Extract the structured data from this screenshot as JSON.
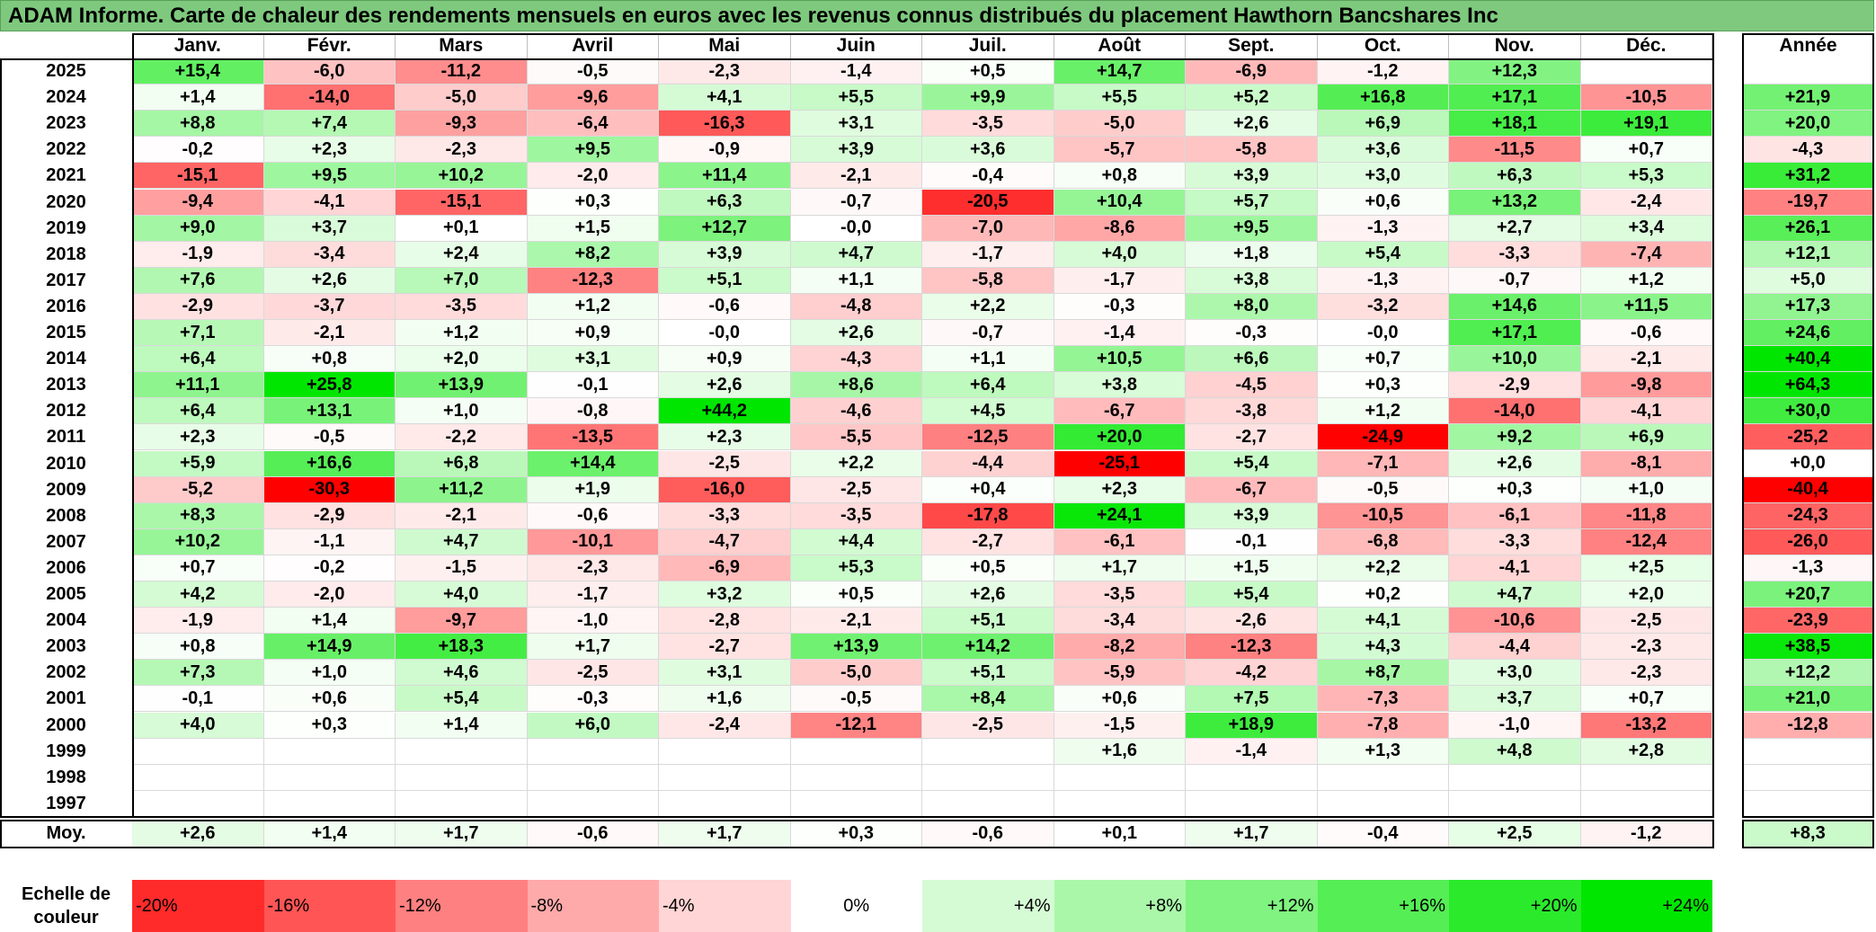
{
  "title": "ADAM Informe. Carte de chaleur des rendements mensuels en euros avec les revenus connus distribués du placement Hawthorn Bancshares Inc",
  "chart_data": {
    "type": "heatmap",
    "title": "ADAM Informe. Carte de chaleur des rendements mensuels en euros avec les revenus connus distribués du placement Hawthorn Bancshares Inc",
    "columns": [
      "Janv.",
      "Févr.",
      "Mars",
      "Avril",
      "Mai",
      "Juin",
      "Juil.",
      "Août",
      "Sept.",
      "Oct.",
      "Nov.",
      "Déc."
    ],
    "year_column_label": "Année",
    "average_label": "Moy.",
    "rows": [
      {
        "year": "2025",
        "values": [
          "+15,4",
          "-6,0",
          "-11,2",
          "-0,5",
          "-2,3",
          "-1,4",
          "+0,5",
          "+14,7",
          "-6,9",
          "-1,2",
          "+12,3",
          ""
        ],
        "annual": ""
      },
      {
        "year": "2024",
        "values": [
          "+1,4",
          "-14,0",
          "-5,0",
          "-9,6",
          "+4,1",
          "+5,5",
          "+9,9",
          "+5,5",
          "+5,2",
          "+16,8",
          "+17,1",
          "-10,5"
        ],
        "annual": "+21,9"
      },
      {
        "year": "2023",
        "values": [
          "+8,8",
          "+7,4",
          "-9,3",
          "-6,4",
          "-16,3",
          "+3,1",
          "-3,5",
          "-5,0",
          "+2,6",
          "+6,9",
          "+18,1",
          "+19,1"
        ],
        "annual": "+20,0"
      },
      {
        "year": "2022",
        "values": [
          "-0,2",
          "+2,3",
          "-2,3",
          "+9,5",
          "-0,9",
          "+3,9",
          "+3,6",
          "-5,7",
          "-5,8",
          "+3,6",
          "-11,5",
          "+0,7"
        ],
        "annual": "-4,3"
      },
      {
        "year": "2021",
        "values": [
          "-15,1",
          "+9,5",
          "+10,2",
          "-2,0",
          "+11,4",
          "-2,1",
          "-0,4",
          "+0,8",
          "+3,9",
          "+3,0",
          "+6,3",
          "+5,3"
        ],
        "annual": "+31,2"
      },
      {
        "year": "2020",
        "values": [
          "-9,4",
          "-4,1",
          "-15,1",
          "+0,3",
          "+6,3",
          "-0,7",
          "-20,5",
          "+10,4",
          "+5,7",
          "+0,6",
          "+13,2",
          "-2,4"
        ],
        "annual": "-19,7"
      },
      {
        "year": "2019",
        "values": [
          "+9,0",
          "+3,7",
          "+0,1",
          "+1,5",
          "+12,7",
          "-0,0",
          "-7,0",
          "-8,6",
          "+9,5",
          "-1,3",
          "+2,7",
          "+3,4"
        ],
        "annual": "+26,1"
      },
      {
        "year": "2018",
        "values": [
          "-1,9",
          "-3,4",
          "+2,4",
          "+8,2",
          "+3,9",
          "+4,7",
          "-1,7",
          "+4,0",
          "+1,8",
          "+5,4",
          "-3,3",
          "-7,4"
        ],
        "annual": "+12,1"
      },
      {
        "year": "2017",
        "values": [
          "+7,6",
          "+2,6",
          "+7,0",
          "-12,3",
          "+5,1",
          "+1,1",
          "-5,8",
          "-1,7",
          "+3,8",
          "-1,3",
          "-0,7",
          "+1,2"
        ],
        "annual": "+5,0"
      },
      {
        "year": "2016",
        "values": [
          "-2,9",
          "-3,7",
          "-3,5",
          "+1,2",
          "-0,6",
          "-4,8",
          "+2,2",
          "-0,3",
          "+8,0",
          "-3,2",
          "+14,6",
          "+11,5"
        ],
        "annual": "+17,3"
      },
      {
        "year": "2015",
        "values": [
          "+7,1",
          "-2,1",
          "+1,2",
          "+0,9",
          "-0,0",
          "+2,6",
          "-0,7",
          "-1,4",
          "-0,3",
          "-0,0",
          "+17,1",
          "-0,6"
        ],
        "annual": "+24,6"
      },
      {
        "year": "2014",
        "values": [
          "+6,4",
          "+0,8",
          "+2,0",
          "+3,1",
          "+0,9",
          "-4,3",
          "+1,1",
          "+10,5",
          "+6,6",
          "+0,7",
          "+10,0",
          "-2,1"
        ],
        "annual": "+40,4"
      },
      {
        "year": "2013",
        "values": [
          "+11,1",
          "+25,8",
          "+13,9",
          "-0,1",
          "+2,6",
          "+8,6",
          "+6,4",
          "+3,8",
          "-4,5",
          "+0,3",
          "-2,9",
          "-9,8"
        ],
        "annual": "+64,3"
      },
      {
        "year": "2012",
        "values": [
          "+6,4",
          "+13,1",
          "+1,0",
          "-0,8",
          "+44,2",
          "-4,6",
          "+4,5",
          "-6,7",
          "-3,8",
          "+1,2",
          "-14,0",
          "-4,1"
        ],
        "annual": "+30,0"
      },
      {
        "year": "2011",
        "values": [
          "+2,3",
          "-0,5",
          "-2,2",
          "-13,5",
          "+2,3",
          "-5,5",
          "-12,5",
          "+20,0",
          "-2,7",
          "-24,9",
          "+9,2",
          "+6,9"
        ],
        "annual": "-25,2"
      },
      {
        "year": "2010",
        "values": [
          "+5,9",
          "+16,6",
          "+6,8",
          "+14,4",
          "-2,5",
          "+2,2",
          "-4,4",
          "-25,1",
          "+5,4",
          "-7,1",
          "+2,6",
          "-8,1"
        ],
        "annual": "+0,0"
      },
      {
        "year": "2009",
        "values": [
          "-5,2",
          "-30,3",
          "+11,2",
          "+1,9",
          "-16,0",
          "-2,5",
          "+0,4",
          "+2,3",
          "-6,7",
          "-0,5",
          "+0,3",
          "+1,0"
        ],
        "annual": "-40,4"
      },
      {
        "year": "2008",
        "values": [
          "+8,3",
          "-2,9",
          "-2,1",
          "-0,6",
          "-3,3",
          "-3,5",
          "-17,8",
          "+24,1",
          "+3,9",
          "-10,5",
          "-6,1",
          "-11,8"
        ],
        "annual": "-24,3"
      },
      {
        "year": "2007",
        "values": [
          "+10,2",
          "-1,1",
          "+4,7",
          "-10,1",
          "-4,7",
          "+4,4",
          "-2,7",
          "-6,1",
          "-0,1",
          "-6,8",
          "-3,3",
          "-12,4"
        ],
        "annual": "-26,0"
      },
      {
        "year": "2006",
        "values": [
          "+0,7",
          "-0,2",
          "-1,5",
          "-2,3",
          "-6,9",
          "+5,3",
          "+0,5",
          "+1,7",
          "+1,5",
          "+2,2",
          "-4,1",
          "+2,5"
        ],
        "annual": "-1,3"
      },
      {
        "year": "2005",
        "values": [
          "+4,2",
          "-2,0",
          "+4,0",
          "-1,7",
          "+3,2",
          "+0,5",
          "+2,6",
          "-3,5",
          "+5,4",
          "+0,2",
          "+4,7",
          "+2,0"
        ],
        "annual": "+20,7"
      },
      {
        "year": "2004",
        "values": [
          "-1,9",
          "+1,4",
          "-9,7",
          "-1,0",
          "-2,8",
          "-2,1",
          "+5,1",
          "-3,4",
          "-2,6",
          "+4,1",
          "-10,6",
          "-2,5"
        ],
        "annual": "-23,9"
      },
      {
        "year": "2003",
        "values": [
          "+0,8",
          "+14,9",
          "+18,3",
          "+1,7",
          "-2,7",
          "+13,9",
          "+14,2",
          "-8,2",
          "-12,3",
          "+4,3",
          "-4,4",
          "-2,3"
        ],
        "annual": "+38,5"
      },
      {
        "year": "2002",
        "values": [
          "+7,3",
          "+1,0",
          "+4,6",
          "-2,5",
          "+3,1",
          "-5,0",
          "+5,1",
          "-5,9",
          "-4,2",
          "+8,7",
          "+3,0",
          "-2,3"
        ],
        "annual": "+12,2"
      },
      {
        "year": "2001",
        "values": [
          "-0,1",
          "+0,6",
          "+5,4",
          "-0,3",
          "+1,6",
          "-0,5",
          "+8,4",
          "+0,6",
          "+7,5",
          "-7,3",
          "+3,7",
          "+0,7"
        ],
        "annual": "+21,0"
      },
      {
        "year": "2000",
        "values": [
          "+4,0",
          "+0,3",
          "+1,4",
          "+6,0",
          "-2,4",
          "-12,1",
          "-2,5",
          "-1,5",
          "+18,9",
          "-7,8",
          "-1,0",
          "-13,2"
        ],
        "annual": "-12,8"
      },
      {
        "year": "1999",
        "values": [
          "",
          "",
          "",
          "",
          "",
          "",
          "",
          "+1,6",
          "-1,4",
          "+1,3",
          "+4,8",
          "+2,8"
        ],
        "annual": ""
      },
      {
        "year": "1998",
        "values": [
          "",
          "",
          "",
          "",
          "",
          "",
          "",
          "",
          "",
          "",
          "",
          ""
        ],
        "annual": ""
      },
      {
        "year": "1997",
        "values": [
          "",
          "",
          "",
          "",
          "",
          "",
          "",
          "",
          "",
          "",
          "",
          ""
        ],
        "annual": ""
      }
    ],
    "averages": [
      "+2,6",
      "+1,4",
      "+1,7",
      "-0,6",
      "+1,7",
      "+0,3",
      "-0,6",
      "+0,1",
      "+1,7",
      "-0,4",
      "+2,5",
      "-1,2"
    ],
    "average_annual": "+8,3",
    "legend": {
      "label": "Echelle de couleur",
      "stops": [
        "-20%",
        "-16%",
        "-12%",
        "-8%",
        "-4%",
        "0%",
        "+4%",
        "+8%",
        "+12%",
        "+16%",
        "+20%",
        "+24%"
      ],
      "stop_values": [
        -20,
        -16,
        -12,
        -8,
        -4,
        0,
        4,
        8,
        12,
        16,
        20,
        24
      ]
    },
    "colors": {
      "negative": "#ff0000",
      "neutral": "#ffffff",
      "positive": "#00e600"
    }
  }
}
